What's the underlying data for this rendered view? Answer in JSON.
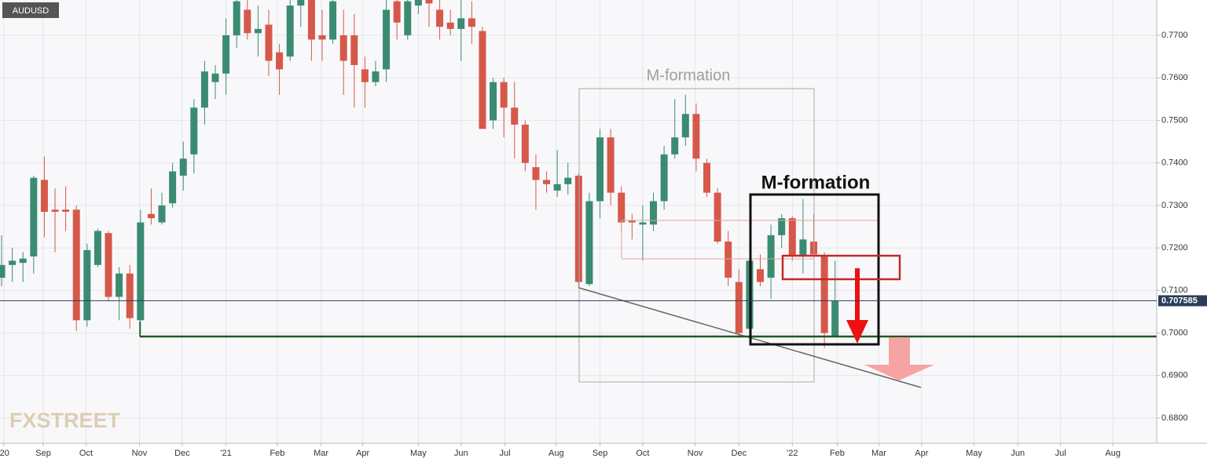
{
  "chart_data": {
    "type": "candlestick",
    "ticker": "AUDUSD",
    "watermark": "FXSTREET",
    "annotations": [
      "M-formation",
      "M-formation"
    ],
    "up_color": "#3b8b73",
    "down_color": "#d6584b",
    "grid": true,
    "last_price": 0.707585,
    "ylim": [
      0.6741,
      0.7783
    ],
    "yticks": [
      {
        "value": 0.68,
        "label": "0.6800"
      },
      {
        "value": 0.69,
        "label": "0.6900"
      },
      {
        "value": 0.7,
        "label": "0.7000"
      },
      {
        "value": 0.71,
        "label": "0.7100"
      },
      {
        "value": 0.72,
        "label": "0.7200"
      },
      {
        "value": 0.73,
        "label": "0.7300"
      },
      {
        "value": 0.74,
        "label": "0.7400"
      },
      {
        "value": 0.75,
        "label": "0.7500"
      },
      {
        "value": 0.76,
        "label": "0.7600"
      },
      {
        "value": 0.77,
        "label": "0.7700"
      }
    ],
    "xlim": [
      -0.15,
      108.1
    ],
    "xticks": [
      {
        "value": 0.2,
        "label": "'20"
      },
      {
        "value": 3.9,
        "label": "Sep"
      },
      {
        "value": 7.9,
        "label": "Oct"
      },
      {
        "value": 12.9,
        "label": "Nov"
      },
      {
        "value": 16.9,
        "label": "Dec"
      },
      {
        "value": 21.0,
        "label": "'21"
      },
      {
        "value": 25.8,
        "label": "Feb"
      },
      {
        "value": 29.9,
        "label": "Mar"
      },
      {
        "value": 33.8,
        "label": "Apr"
      },
      {
        "value": 39.0,
        "label": "May"
      },
      {
        "value": 43.0,
        "label": "Jun"
      },
      {
        "value": 47.1,
        "label": "Jul"
      },
      {
        "value": 51.9,
        "label": "Aug"
      },
      {
        "value": 56.0,
        "label": "Sep"
      },
      {
        "value": 60.0,
        "label": "Oct"
      },
      {
        "value": 64.9,
        "label": "Nov"
      },
      {
        "value": 69.0,
        "label": "Dec"
      },
      {
        "value": 74.0,
        "label": "'22"
      },
      {
        "value": 78.2,
        "label": "Feb"
      },
      {
        "value": 82.1,
        "label": "Mar"
      },
      {
        "value": 86.1,
        "label": "Apr"
      },
      {
        "value": 91.0,
        "label": "May"
      },
      {
        "value": 95.1,
        "label": "Jun"
      },
      {
        "value": 99.1,
        "label": "Jul"
      },
      {
        "value": 104.0,
        "label": "Aug"
      }
    ],
    "open": [
      0.713,
      0.716,
      0.7165,
      0.718,
      0.736,
      0.729,
      0.729,
      0.729,
      0.703,
      0.716,
      0.7235,
      0.7085,
      0.714,
      0.703,
      0.728,
      0.726,
      0.7305,
      0.737,
      0.742,
      0.753,
      0.759,
      0.761,
      0.77,
      0.776,
      0.7705,
      0.7725,
      0.766,
      0.765,
      0.777,
      0.78,
      0.77,
      0.769,
      0.77,
      0.77,
      0.762,
      0.759,
      0.762,
      0.778,
      0.77,
      0.777,
      0.78,
      0.776,
      0.773,
      0.7715,
      0.774,
      0.771,
      0.75,
      0.759,
      0.753,
      0.749,
      0.739,
      0.736,
      0.7335,
      0.735,
      0.737,
      0.7115,
      0.731,
      0.746,
      0.733,
      0.7265,
      0.7255,
      0.7255,
      0.731,
      0.742,
      0.746,
      0.7515,
      0.74,
      0.733,
      0.7215,
      0.712,
      0.701,
      0.715,
      0.713,
      0.723,
      0.727,
      0.718,
      0.7215,
      0.718,
      0.699
    ],
    "high": [
      0.723,
      0.72,
      0.719,
      0.737,
      0.7415,
      0.734,
      0.7345,
      0.73,
      0.721,
      0.7245,
      0.724,
      0.7155,
      0.716,
      0.729,
      0.734,
      0.733,
      0.74,
      0.745,
      0.755,
      0.764,
      0.763,
      0.774,
      0.782,
      0.782,
      0.777,
      0.776,
      0.768,
      0.78,
      0.784,
      0.783,
      0.776,
      0.78,
      0.776,
      0.775,
      0.765,
      0.764,
      0.779,
      0.782,
      0.783,
      0.789,
      0.782,
      0.781,
      0.776,
      0.78,
      0.778,
      0.772,
      0.76,
      0.76,
      0.759,
      0.75,
      0.742,
      0.738,
      0.743,
      0.74,
      0.7375,
      0.733,
      0.748,
      0.748,
      0.7345,
      0.728,
      0.73,
      0.733,
      0.744,
      0.755,
      0.756,
      0.754,
      0.741,
      0.734,
      0.724,
      0.715,
      0.717,
      0.7185,
      0.7255,
      0.728,
      0.7275,
      0.7315,
      0.728,
      0.719,
      0.717
    ],
    "low": [
      0.711,
      0.712,
      0.712,
      0.714,
      0.7225,
      0.719,
      0.724,
      0.7005,
      0.7015,
      0.7155,
      0.7075,
      0.703,
      0.701,
      0.6995,
      0.7255,
      0.7255,
      0.7295,
      0.7335,
      0.7375,
      0.749,
      0.755,
      0.756,
      0.767,
      0.769,
      0.765,
      0.7605,
      0.756,
      0.764,
      0.772,
      0.764,
      0.764,
      0.768,
      0.756,
      0.753,
      0.753,
      0.758,
      0.759,
      0.769,
      0.769,
      0.775,
      0.772,
      0.769,
      0.77,
      0.764,
      0.768,
      0.748,
      0.748,
      0.746,
      0.741,
      0.738,
      0.729,
      0.733,
      0.732,
      0.7325,
      0.7105,
      0.711,
      0.727,
      0.73,
      0.724,
      0.722,
      0.717,
      0.724,
      0.729,
      0.741,
      0.744,
      0.738,
      0.732,
      0.721,
      0.711,
      0.699,
      0.6995,
      0.711,
      0.708,
      0.72,
      0.717,
      0.714,
      0.718,
      0.6965,
      0.699
    ],
    "close": [
      0.716,
      0.717,
      0.7175,
      0.7365,
      0.7285,
      0.7285,
      0.7285,
      0.703,
      0.7195,
      0.724,
      0.7085,
      0.714,
      0.7035,
      0.726,
      0.727,
      0.73,
      0.738,
      0.741,
      0.753,
      0.7615,
      0.761,
      0.77,
      0.778,
      0.7705,
      0.7715,
      0.764,
      0.762,
      0.777,
      0.78,
      0.769,
      0.769,
      0.778,
      0.764,
      0.763,
      0.759,
      0.7615,
      0.776,
      0.773,
      0.778,
      0.782,
      0.7775,
      0.772,
      0.7715,
      0.774,
      0.772,
      0.748,
      0.759,
      0.753,
      0.749,
      0.74,
      0.736,
      0.735,
      0.735,
      0.7365,
      0.712,
      0.731,
      0.746,
      0.733,
      0.726,
      0.726,
      0.726,
      0.731,
      0.742,
      0.746,
      0.7515,
      0.741,
      0.733,
      0.7215,
      0.713,
      0.7,
      0.717,
      0.712,
      0.723,
      0.727,
      0.718,
      0.722,
      0.7185,
      0.7,
      0.7075
    ]
  }
}
